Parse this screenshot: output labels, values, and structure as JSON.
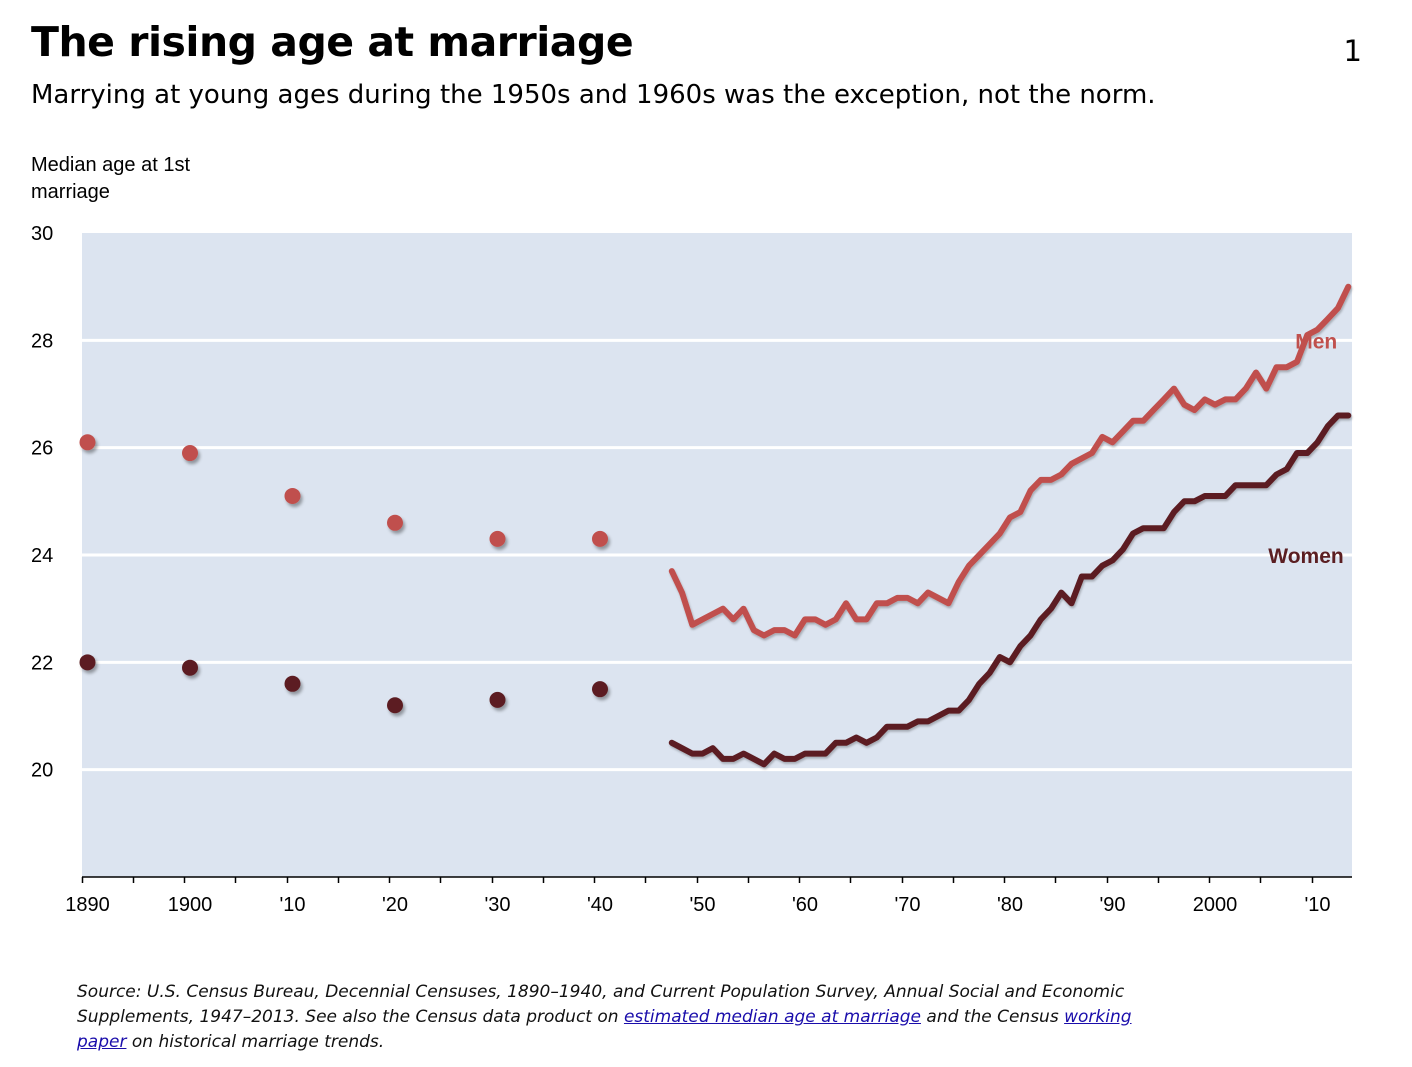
{
  "header": {
    "title": "The rising age at marriage",
    "subtitle": "Marrying at young ages during the 1950s and 1960s was the exception, not the norm.",
    "page_number": "1"
  },
  "source": {
    "text_1": "Source: U.S. Census Bureau, Decennial Censuses, 1890–1940, and Current Population Survey, Annual Social and Economic Supplements, 1947–2013. See also the Census data product on",
    "link_1": "estimated median age at marriage",
    "text_2": "and the Census",
    "link_2": "working paper",
    "text_3": "on historical marriage trends."
  },
  "chart_data": {
    "type": "line",
    "ylabel": "Median age at 1st marriage",
    "xlabel": "",
    "ylim": [
      18,
      30
    ],
    "xlim": [
      1890,
      2013.5
    ],
    "yticks": [
      20,
      22,
      24,
      26,
      28,
      30
    ],
    "xticks": [
      {
        "value": 1890,
        "label": "1890"
      },
      {
        "value": 1900,
        "label": "1900"
      },
      {
        "value": 1910,
        "label": "'10"
      },
      {
        "value": 1920,
        "label": "'20"
      },
      {
        "value": 1930,
        "label": "'30"
      },
      {
        "value": 1940,
        "label": "'40"
      },
      {
        "value": 1950,
        "label": "'50"
      },
      {
        "value": 1960,
        "label": "'60"
      },
      {
        "value": 1970,
        "label": "'70"
      },
      {
        "value": 1980,
        "label": "'80"
      },
      {
        "value": 1990,
        "label": "'90"
      },
      {
        "value": 2000,
        "label": "2000"
      },
      {
        "value": 2010,
        "label": "'10"
      }
    ],
    "grid": true,
    "background": "#dce4f0",
    "series": [
      {
        "name": "Men",
        "color": "#c0504d",
        "label_year": 2005,
        "label_value": 27.7,
        "census_points": {
          "x": [
            1890,
            1900,
            1910,
            1920,
            1930,
            1940
          ],
          "y": [
            26.1,
            25.9,
            25.1,
            24.6,
            24.3,
            24.3
          ]
        },
        "line": {
          "x": [
            1947,
            1948,
            1949,
            1950,
            1951,
            1952,
            1953,
            1954,
            1955,
            1956,
            1957,
            1958,
            1959,
            1960,
            1961,
            1962,
            1963,
            1964,
            1965,
            1966,
            1967,
            1968,
            1969,
            1970,
            1971,
            1972,
            1973,
            1974,
            1975,
            1976,
            1977,
            1978,
            1979,
            1980,
            1981,
            1982,
            1983,
            1984,
            1985,
            1986,
            1987,
            1988,
            1989,
            1990,
            1991,
            1992,
            1993,
            1994,
            1995,
            1996,
            1997,
            1998,
            1999,
            2000,
            2001,
            2002,
            2003,
            2004,
            2005,
            2006,
            2007,
            2008,
            2009,
            2010,
            2011,
            2012,
            2013
          ],
          "y": [
            23.7,
            23.3,
            22.7,
            22.8,
            22.9,
            23.0,
            22.8,
            23.0,
            22.6,
            22.5,
            22.6,
            22.6,
            22.5,
            22.8,
            22.8,
            22.7,
            22.8,
            23.1,
            22.8,
            22.8,
            23.1,
            23.1,
            23.2,
            23.2,
            23.1,
            23.3,
            23.2,
            23.1,
            23.5,
            23.8,
            24.0,
            24.2,
            24.4,
            24.7,
            24.8,
            25.2,
            25.4,
            25.4,
            25.5,
            25.7,
            25.8,
            25.9,
            26.2,
            26.1,
            26.3,
            26.5,
            26.5,
            26.7,
            26.9,
            27.1,
            26.8,
            26.7,
            26.9,
            26.8,
            26.9,
            26.9,
            27.1,
            27.4,
            27.1,
            27.5,
            27.5,
            27.6,
            28.1,
            28.2,
            28.4,
            28.6,
            29.0
          ]
        }
      },
      {
        "name": "Women",
        "color": "#5b1e22",
        "label_year": 2004,
        "label_value": 23.7,
        "census_points": {
          "x": [
            1890,
            1900,
            1910,
            1920,
            1930,
            1940
          ],
          "y": [
            22.0,
            21.9,
            21.6,
            21.2,
            21.3,
            21.5
          ]
        },
        "line": {
          "x": [
            1947,
            1948,
            1949,
            1950,
            1951,
            1952,
            1953,
            1954,
            1955,
            1956,
            1957,
            1958,
            1959,
            1960,
            1961,
            1962,
            1963,
            1964,
            1965,
            1966,
            1967,
            1968,
            1969,
            1970,
            1971,
            1972,
            1973,
            1974,
            1975,
            1976,
            1977,
            1978,
            1979,
            1980,
            1981,
            1982,
            1983,
            1984,
            1985,
            1986,
            1987,
            1988,
            1989,
            1990,
            1991,
            1992,
            1993,
            1994,
            1995,
            1996,
            1997,
            1998,
            1999,
            2000,
            2001,
            2002,
            2003,
            2004,
            2005,
            2006,
            2007,
            2008,
            2009,
            2010,
            2011,
            2012,
            2013
          ],
          "y": [
            20.5,
            20.4,
            20.3,
            20.3,
            20.4,
            20.2,
            20.2,
            20.3,
            20.2,
            20.1,
            20.3,
            20.2,
            20.2,
            20.3,
            20.3,
            20.3,
            20.5,
            20.5,
            20.6,
            20.5,
            20.6,
            20.8,
            20.8,
            20.8,
            20.9,
            20.9,
            21.0,
            21.1,
            21.1,
            21.3,
            21.6,
            21.8,
            22.1,
            22.0,
            22.3,
            22.5,
            22.8,
            23.0,
            23.3,
            23.1,
            23.6,
            23.6,
            23.8,
            23.9,
            24.1,
            24.4,
            24.5,
            24.5,
            24.5,
            24.8,
            25.0,
            25.0,
            25.1,
            25.1,
            25.1,
            25.3,
            25.3,
            25.3,
            25.3,
            25.5,
            25.6,
            25.9,
            25.9,
            26.1,
            26.4,
            26.6,
            26.6
          ]
        }
      }
    ]
  }
}
